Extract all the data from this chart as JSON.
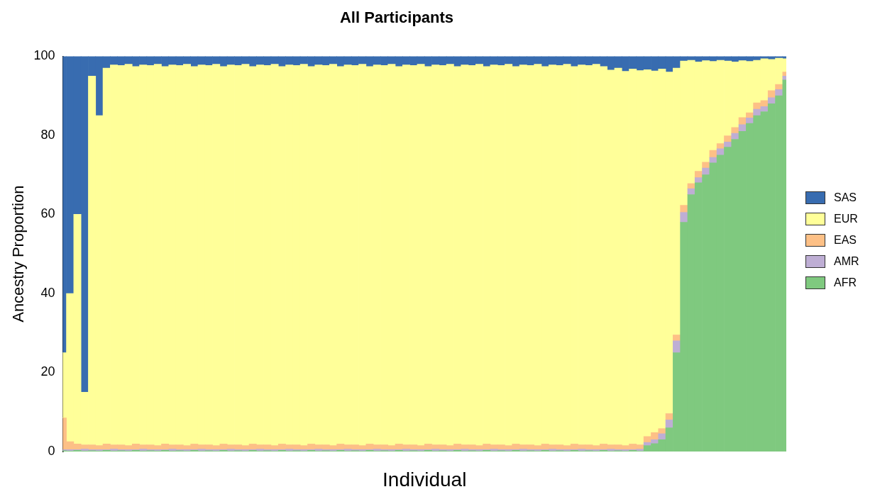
{
  "chart_data": {
    "type": "bar",
    "stacked": true,
    "title": "All Participants",
    "xlabel": "Individual",
    "ylabel": "Ancestry Proportion",
    "ylim": [
      0,
      100
    ],
    "yticks": [
      0,
      20,
      40,
      60,
      80,
      100
    ],
    "grid": false,
    "legend": "right",
    "categories": [
      null,
      null,
      null,
      null,
      null,
      null,
      null,
      null,
      null,
      null,
      null,
      null,
      null,
      null,
      null,
      null,
      null,
      null,
      null,
      null,
      null,
      null,
      null,
      null,
      null,
      null,
      null,
      null,
      null,
      null,
      null,
      null,
      null,
      null,
      null,
      null,
      null,
      null,
      null,
      null,
      null,
      null,
      null,
      null,
      null,
      null,
      null,
      null,
      null,
      null,
      null,
      null,
      null,
      null,
      null,
      null,
      null,
      null,
      null,
      null,
      null,
      null,
      null,
      null,
      null,
      null,
      null,
      null,
      null,
      null,
      null,
      null,
      null,
      null,
      null,
      null,
      null,
      null,
      null,
      null,
      null,
      null,
      null,
      null,
      null,
      null,
      null,
      null,
      null,
      null,
      null,
      null,
      null,
      null,
      null,
      null,
      null,
      null,
      null,
      null
    ],
    "series": [
      {
        "name": "AFR",
        "color": "#7fc97f",
        "values": [
          0.2,
          0.1,
          0.3,
          0.1,
          0.2,
          0.1,
          0.3,
          0.1,
          0.2,
          0.1,
          0.3,
          0.1,
          0.2,
          0.1,
          0.3,
          0.1,
          0.2,
          0.1,
          0.3,
          0.1,
          0.2,
          0.1,
          0.3,
          0.1,
          0.2,
          0.1,
          0.3,
          0.1,
          0.2,
          0.1,
          0.3,
          0.1,
          0.2,
          0.1,
          0.3,
          0.1,
          0.2,
          0.1,
          0.3,
          0.1,
          0.2,
          0.1,
          0.3,
          0.1,
          0.2,
          0.1,
          0.3,
          0.1,
          0.2,
          0.1,
          0.3,
          0.1,
          0.2,
          0.1,
          0.3,
          0.1,
          0.2,
          0.1,
          0.3,
          0.1,
          0.2,
          0.1,
          0.3,
          0.1,
          0.2,
          0.1,
          0.3,
          0.1,
          0.2,
          0.1,
          0.3,
          0.1,
          0.2,
          0.1,
          0.3,
          0.1,
          0.2,
          0.1,
          0.3,
          0.1,
          1.5,
          2,
          3,
          6,
          25,
          58,
          65,
          68,
          70,
          73,
          75,
          77,
          79,
          81,
          83,
          85,
          86,
          88,
          90,
          94
        ]
      },
      {
        "name": "AMR",
        "color": "#beaed4",
        "values": [
          0.3,
          0.4,
          0.2,
          0.5,
          0.3,
          0.4,
          0.2,
          0.5,
          0.3,
          0.4,
          0.2,
          0.5,
          0.3,
          0.4,
          0.2,
          0.5,
          0.3,
          0.4,
          0.2,
          0.5,
          0.3,
          0.4,
          0.2,
          0.5,
          0.3,
          0.4,
          0.2,
          0.5,
          0.3,
          0.4,
          0.2,
          0.5,
          0.3,
          0.4,
          0.2,
          0.5,
          0.3,
          0.4,
          0.2,
          0.5,
          0.3,
          0.4,
          0.2,
          0.5,
          0.3,
          0.4,
          0.2,
          0.5,
          0.3,
          0.4,
          0.2,
          0.5,
          0.3,
          0.4,
          0.2,
          0.5,
          0.3,
          0.4,
          0.2,
          0.5,
          0.3,
          0.4,
          0.2,
          0.5,
          0.3,
          0.4,
          0.2,
          0.5,
          0.3,
          0.4,
          0.2,
          0.5,
          0.3,
          0.4,
          0.2,
          0.5,
          0.3,
          0.4,
          0.2,
          0.5,
          0.8,
          1,
          1.5,
          2,
          3,
          2.5,
          1.5,
          1.3,
          1.7,
          1.4,
          1.6,
          1.3,
          1.5,
          1.7,
          1.4,
          1.6,
          1.3,
          1.5,
          1.6,
          1
        ]
      },
      {
        "name": "EAS",
        "color": "#fdc086",
        "values": [
          8,
          2,
          1.4,
          1.1,
          1.2,
          1.0,
          1.4,
          1.1,
          1.2,
          1.0,
          1.4,
          1.1,
          1.2,
          1.0,
          1.4,
          1.1,
          1.2,
          1.0,
          1.4,
          1.1,
          1.2,
          1.0,
          1.4,
          1.1,
          1.2,
          1.0,
          1.4,
          1.1,
          1.2,
          1.0,
          1.4,
          1.1,
          1.2,
          1.0,
          1.4,
          1.1,
          1.2,
          1.0,
          1.4,
          1.1,
          1.2,
          1.0,
          1.4,
          1.1,
          1.2,
          1.0,
          1.4,
          1.1,
          1.2,
          1.0,
          1.4,
          1.1,
          1.2,
          1.0,
          1.4,
          1.1,
          1.2,
          1.0,
          1.4,
          1.1,
          1.2,
          1.0,
          1.4,
          1.1,
          1.2,
          1.0,
          1.4,
          1.1,
          1.2,
          1.0,
          1.4,
          1.1,
          1.2,
          1.0,
          1.4,
          1.1,
          1.2,
          1.0,
          1.4,
          1.1,
          1.5,
          1.8,
          1.3,
          1.6,
          1.5,
          1.8,
          1.3,
          1.6,
          1.5,
          1.8,
          1.3,
          1.6,
          1.5,
          1.8,
          1.3,
          1.6,
          1.5,
          1.8,
          1.3,
          1
        ]
      },
      {
        "name": "EUR",
        "color": "#ffff99",
        "values": [
          16.5,
          37.5,
          58.1,
          13.3,
          93.3,
          83.5,
          95.1,
          96.1,
          96,
          96.5,
          95.5,
          96.1,
          96,
          96.5,
          95.5,
          96.1,
          96,
          96.5,
          95.5,
          96.1,
          96,
          96.5,
          95.5,
          96.1,
          96,
          96.5,
          95.5,
          96.1,
          96,
          96.5,
          95.5,
          96.1,
          96,
          96.5,
          95.5,
          96.1,
          96,
          96.5,
          95.5,
          96.1,
          96,
          96.5,
          95.5,
          96.1,
          96,
          96.5,
          95.5,
          96.1,
          96,
          96.5,
          95.5,
          96.1,
          96,
          96.5,
          95.5,
          96.1,
          96,
          96.5,
          95.5,
          96.1,
          96,
          96.5,
          95.5,
          96.1,
          96,
          96.5,
          95.5,
          96.1,
          96,
          96.5,
          95.5,
          96.1,
          96,
          96.5,
          95.5,
          94.8,
          95.3,
          94.7,
          94.9,
          94.7,
          92.8,
          91.5,
          91,
          86.4,
          67.5,
          36.5,
          31.2,
          27.7,
          25.7,
          22.5,
          21.1,
          18.9,
          16.6,
          14.4,
          13,
          10.8,
          10.6,
          7.9,
          6.6,
          3.4
        ]
      },
      {
        "name": "SAS",
        "color": "#386cb0",
        "values": [
          75,
          60,
          40,
          85,
          5,
          15,
          3,
          2.2,
          2.3,
          2.0,
          2.6,
          2.2,
          2.3,
          2.0,
          2.6,
          2.2,
          2.3,
          2.0,
          2.6,
          2.2,
          2.3,
          2.0,
          2.6,
          2.2,
          2.3,
          2.0,
          2.6,
          2.2,
          2.3,
          2.0,
          2.6,
          2.2,
          2.3,
          2.0,
          2.6,
          2.2,
          2.3,
          2.0,
          2.6,
          2.2,
          2.3,
          2.0,
          2.6,
          2.2,
          2.3,
          2.0,
          2.6,
          2.2,
          2.3,
          2.0,
          2.6,
          2.2,
          2.3,
          2.0,
          2.6,
          2.2,
          2.3,
          2.0,
          2.6,
          2.2,
          2.3,
          2.0,
          2.6,
          2.2,
          2.3,
          2.0,
          2.6,
          2.2,
          2.3,
          2.0,
          2.6,
          2.2,
          2.3,
          2.0,
          2.6,
          3.5,
          3.0,
          3.8,
          3.2,
          3.6,
          3.4,
          3.7,
          3.2,
          4,
          3,
          1.2,
          1.0,
          1.4,
          1.1,
          1.3,
          1.0,
          1.2,
          1.4,
          1.1,
          1.3,
          1.0,
          0.6,
          0.8,
          0.5,
          0.6
        ]
      }
    ]
  }
}
